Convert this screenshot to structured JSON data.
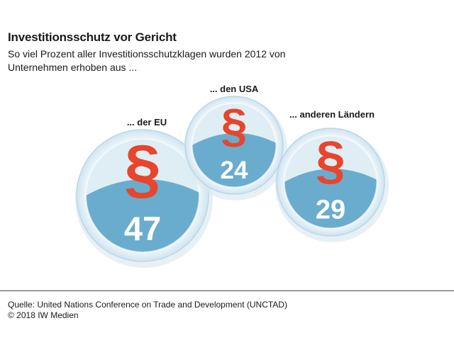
{
  "header": {
    "title": "Investitionsschutz vor Gericht",
    "subtitle": "So viel Prozent aller Investitionsschutzklagen wurden 2012 von Unternehmen erhoben aus ..."
  },
  "chart_data": {
    "type": "bubble",
    "unit": "%",
    "symbol": "§",
    "categories": [
      "... der EU",
      "... den USA",
      "... anderen Ländern"
    ],
    "values": [
      47,
      24,
      29
    ]
  },
  "footer": {
    "source": "Quelle: United Nations Conference on Trade and Development (UNCTAD)",
    "copyright": "© 2018 IW Medien"
  },
  "colors": {
    "bubble_fill": "#6aaccd",
    "bubble_light": "#e6f1f7",
    "symbol": "#e8452c",
    "value_text": "#ffffff"
  }
}
